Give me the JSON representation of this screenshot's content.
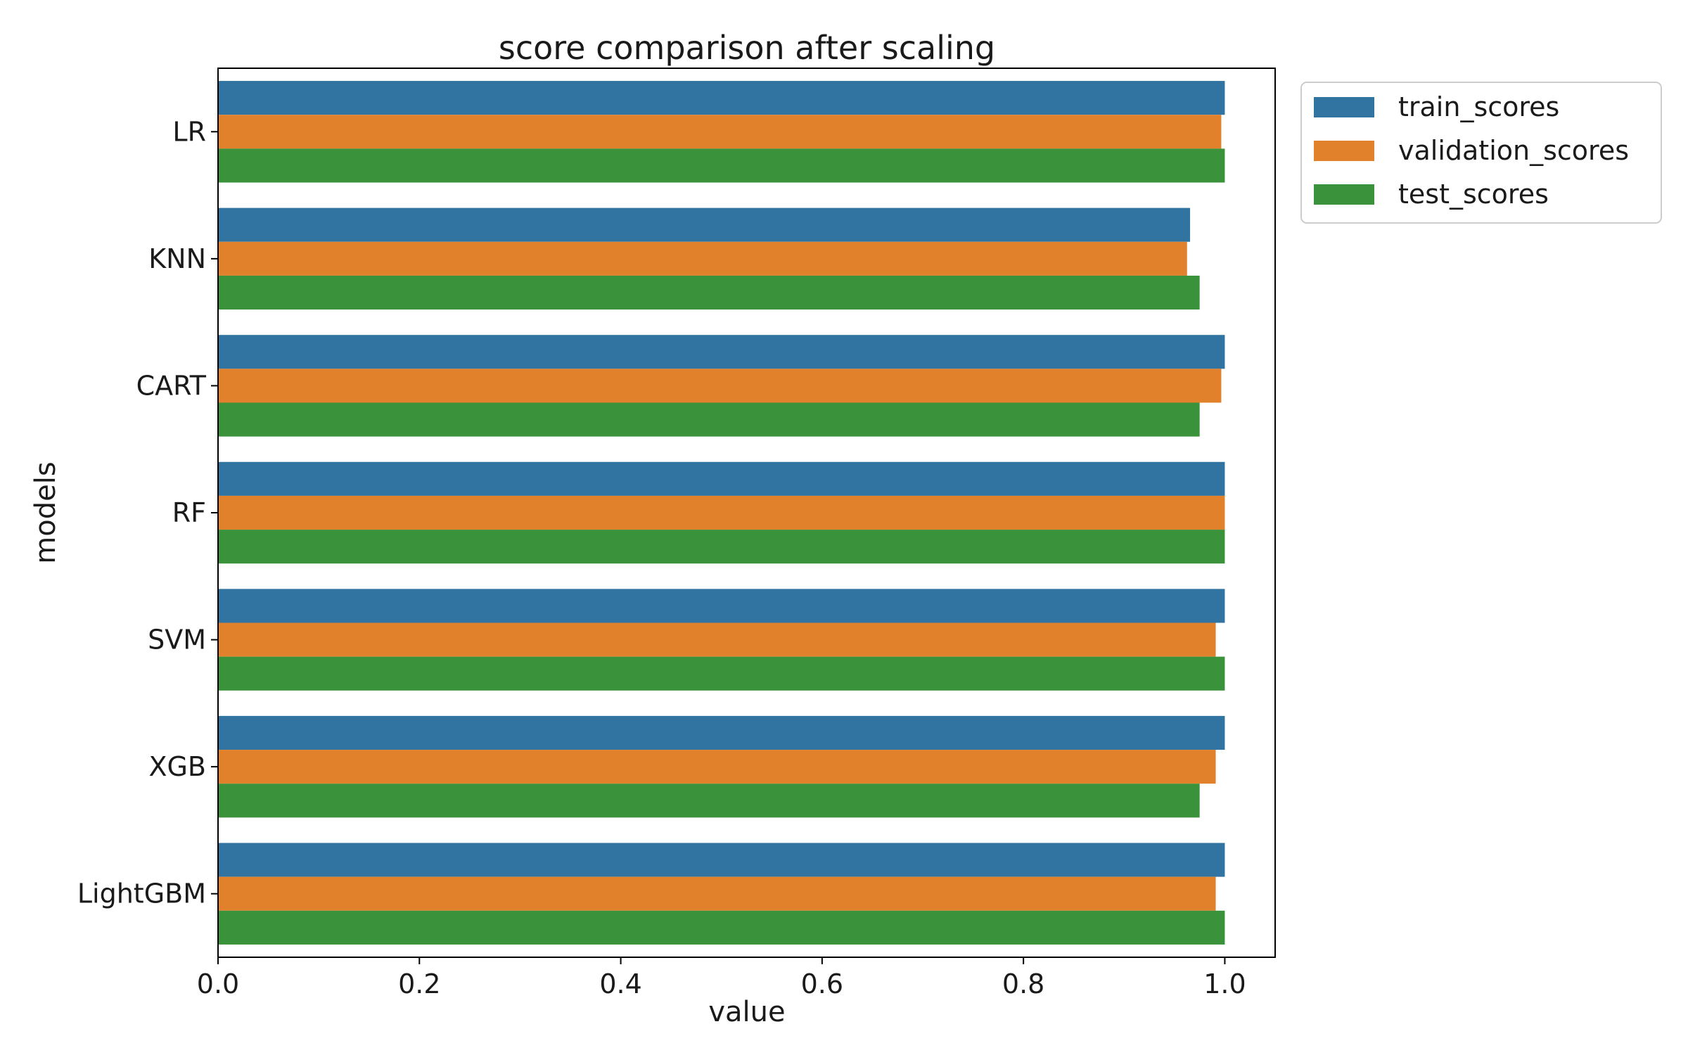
{
  "chart_data": {
    "type": "bar",
    "orientation": "horizontal",
    "title": "score comparison after scaling",
    "xlabel": "value",
    "ylabel": "models",
    "categories": [
      "LR",
      "KNN",
      "CART",
      "RF",
      "SVM",
      "XGB",
      "LightGBM"
    ],
    "series": [
      {
        "name": "train_scores",
        "color": "#3274a1",
        "values": [
          1.0,
          0.9655,
          1.0,
          1.0,
          1.0,
          1.0,
          1.0
        ]
      },
      {
        "name": "validation_scores",
        "color": "#e1812c",
        "values": [
          0.9965,
          0.9625,
          0.9965,
          1.0,
          0.991,
          0.991,
          0.991
        ]
      },
      {
        "name": "test_scores",
        "color": "#3a923a",
        "values": [
          1.0,
          0.975,
          0.975,
          1.0,
          1.0,
          0.975,
          1.0
        ]
      }
    ],
    "xlim": [
      0,
      1.05
    ],
    "xticks": [
      0.0,
      0.2,
      0.4,
      0.6,
      0.8,
      1.0
    ],
    "xtick_labels": [
      "0.0",
      "0.2",
      "0.4",
      "0.6",
      "0.8",
      "1.0"
    ],
    "grid": false,
    "legend_position": "outside-top-right"
  }
}
